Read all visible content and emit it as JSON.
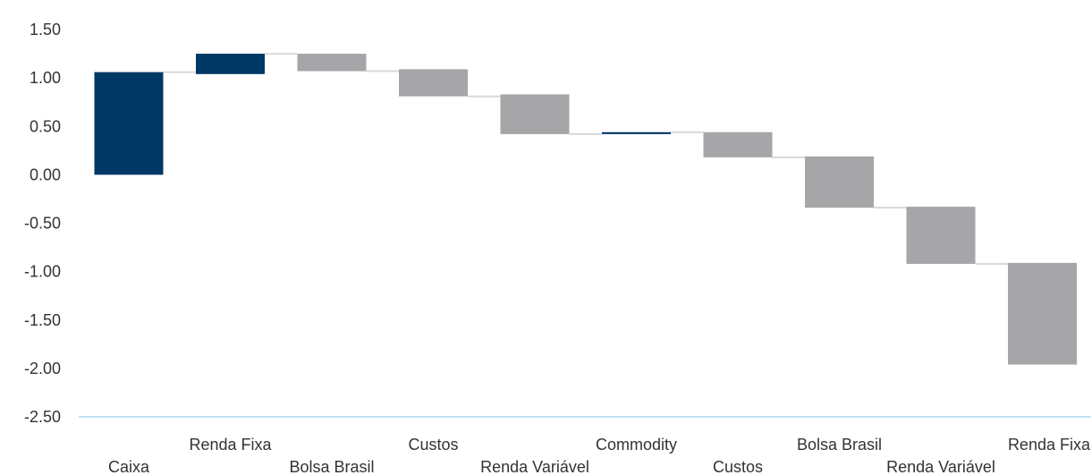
{
  "chart_data": {
    "type": "waterfall",
    "title": "",
    "xlabel": "",
    "ylabel": "",
    "ylim": [
      -2.5,
      1.5
    ],
    "yticks": [
      1.5,
      1.0,
      0.5,
      0.0,
      -0.5,
      -1.0,
      -1.5,
      -2.0,
      -2.5
    ],
    "ytick_labels": [
      "1.50",
      "1.00",
      "0.50",
      "0.00",
      "-0.50",
      "-1.00",
      "-1.50",
      "-2.00",
      "-2.50"
    ],
    "categories": [
      "Caixa",
      "Renda Fixa",
      "Bolsa Brasil",
      "Custos",
      "Renda Variável",
      "Commodity",
      "Custos",
      "Bolsa Brasil",
      "Renda Variável",
      "Renda Fixa"
    ],
    "label_rows": [
      "low",
      "high",
      "low",
      "high",
      "low",
      "high",
      "low",
      "high",
      "low",
      "high"
    ],
    "steps": [
      {
        "start": 0.0,
        "end": 1.06
      },
      {
        "start": 1.04,
        "end": 1.25
      },
      {
        "start": 1.25,
        "end": 1.07
      },
      {
        "start": 1.09,
        "end": 0.81
      },
      {
        "start": 0.83,
        "end": 0.42
      },
      {
        "start": 0.42,
        "end": 0.44
      },
      {
        "start": 0.44,
        "end": 0.18
      },
      {
        "start": 0.19,
        "end": -0.34
      },
      {
        "start": -0.33,
        "end": -0.92
      },
      {
        "start": -0.91,
        "end": -1.96
      }
    ],
    "grid": false,
    "legend": "none",
    "colors": {
      "positive": "#003865",
      "negative": "#a6a6a8",
      "connector": "#d9d9d9",
      "axis": "#bfe3f2",
      "text": "#333333"
    }
  }
}
